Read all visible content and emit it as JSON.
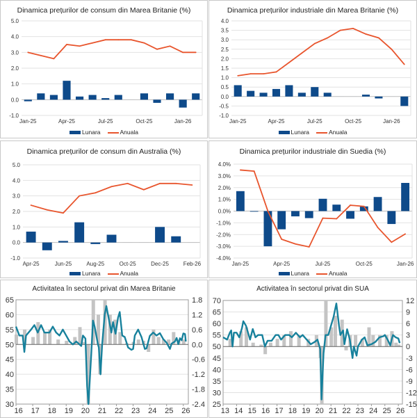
{
  "colors": {
    "bar": "#0e4a8a",
    "line": "#e8542c",
    "pmi_line": "#17819c",
    "pmi_bar": "#c4c4c4",
    "grid": "#e2e2e2"
  },
  "chart_data": [
    {
      "type": "bar+line",
      "title": "Dinamica prețurilor de consum din Marea Britanie (%)",
      "categories": [
        "Jan-25",
        "Feb-25",
        "Mar-25",
        "Apr-25",
        "May-25",
        "Jun-25",
        "Jul-25",
        "Aug-25",
        "Sep-25",
        "Oct-25",
        "Nov-25",
        "Dec-25",
        "Jan-26",
        "Feb-26"
      ],
      "tick_labels": [
        "Jan-25",
        "",
        "",
        "Apr-25",
        "",
        "",
        "Jul-25",
        "",
        "",
        "Oct-25",
        "",
        "",
        "Jan-26",
        ""
      ],
      "ylim": [
        -1,
        5
      ],
      "ystep": 1,
      "yformat": "0.0",
      "grid": true,
      "legend": "bottom",
      "series": [
        {
          "name": "Lunara",
          "type": "bar",
          "values": [
            -0.1,
            0.4,
            0.3,
            1.2,
            0.2,
            0.3,
            0.1,
            0.3,
            0.0,
            0.4,
            -0.2,
            0.4,
            -0.5,
            0.4
          ]
        },
        {
          "name": "Anuala",
          "type": "line",
          "values": [
            3.0,
            2.8,
            2.6,
            3.5,
            3.4,
            3.6,
            3.8,
            3.8,
            3.8,
            3.6,
            3.2,
            3.4,
            3.0,
            3.0
          ]
        }
      ]
    },
    {
      "type": "bar+line",
      "title": "Dinamica prețurilor industriale din Marea Britanie (%)",
      "categories": [
        "Jan-25",
        "Feb-25",
        "Mar-25",
        "Apr-25",
        "May-25",
        "Jun-25",
        "Jul-25",
        "Aug-25",
        "Sep-25",
        "Oct-25",
        "Nov-25",
        "Dec-25",
        "Jan-26",
        "Feb-26"
      ],
      "tick_labels": [
        "Jan-25",
        "",
        "",
        "Apr-25",
        "",
        "",
        "Jul-25",
        "",
        "",
        "Oct-25",
        "",
        "",
        "Jan-26",
        ""
      ],
      "ylim": [
        -1,
        4
      ],
      "ystep": 0.5,
      "yformat": "0.0",
      "grid": true,
      "legend": "bottom",
      "series": [
        {
          "name": "Lunara",
          "type": "bar",
          "values": [
            0.6,
            0.3,
            0.2,
            0.4,
            0.6,
            0.2,
            0.5,
            0.2,
            0.0,
            0.0,
            0.1,
            -0.1,
            0.0,
            -0.5
          ]
        },
        {
          "name": "Anuala",
          "type": "line",
          "values": [
            1.1,
            1.2,
            1.2,
            1.3,
            1.8,
            2.3,
            2.8,
            3.1,
            3.5,
            3.6,
            3.3,
            3.1,
            2.5,
            1.7
          ]
        }
      ]
    },
    {
      "type": "bar+line",
      "title": "Dinamica prețurilor de consum din Australia (%)",
      "categories": [
        "Apr-25",
        "May-25",
        "Jun-25",
        "Jul-25",
        "Aug-25",
        "Sep-25",
        "Oct-25",
        "Nov-25",
        "Dec-25",
        "Jan-26",
        "Feb-26"
      ],
      "tick_labels": [
        "Apr-25",
        "",
        "Jun-25",
        "",
        "Aug-25",
        "",
        "Oct-25",
        "",
        "Dec-25",
        "",
        "Feb-26"
      ],
      "ylim": [
        -1,
        5
      ],
      "ystep": 1,
      "yformat": "0.0",
      "grid": true,
      "legend": "bottom",
      "series": [
        {
          "name": "Lunara",
          "type": "bar",
          "values": [
            0.7,
            -0.5,
            0.1,
            1.3,
            -0.1,
            0.5,
            0.0,
            0.0,
            1.0,
            0.4,
            0.0
          ]
        },
        {
          "name": "Anuala",
          "type": "line",
          "values": [
            2.4,
            2.1,
            1.9,
            3.0,
            3.2,
            3.6,
            3.8,
            3.4,
            3.8,
            3.8,
            3.7
          ]
        }
      ]
    },
    {
      "type": "bar+line",
      "title": "Dinamica prețurilor industriale din Suedia (%)",
      "categories": [
        "Jan-25",
        "Feb-25",
        "Mar-25",
        "Apr-25",
        "May-25",
        "Jun-25",
        "Jul-25",
        "Aug-25",
        "Sep-25",
        "Oct-25",
        "Nov-25",
        "Dec-25",
        "Jan-26"
      ],
      "tick_labels": [
        "Jan-25",
        "",
        "",
        "Apr-25",
        "",
        "",
        "Jul-25",
        "",
        "",
        "Oct-25",
        "",
        "",
        "Jan-26"
      ],
      "ylim": [
        -4,
        4
      ],
      "ystep": 1,
      "yformat": "0.0%",
      "grid": true,
      "legend": "bottom",
      "series": [
        {
          "name": "Lunara",
          "type": "bar",
          "values": [
            1.7,
            -0.05,
            -3.0,
            -1.55,
            -0.45,
            -0.6,
            1.05,
            0.55,
            -0.65,
            0.4,
            1.2,
            -1.1,
            2.4
          ]
        },
        {
          "name": "Anuala",
          "type": "line",
          "values": [
            3.5,
            3.4,
            0.0,
            -2.4,
            -2.8,
            -3.05,
            -0.6,
            -0.65,
            0.5,
            0.4,
            -1.4,
            -2.65,
            -1.95
          ]
        }
      ]
    },
    {
      "type": "line+bar",
      "title": "Activitatea în sectorul privat din Marea Britanie",
      "xlim": [
        16,
        26.3
      ],
      "x_ticks": [
        "16",
        "17",
        "18",
        "19",
        "20",
        "21",
        "22",
        "23",
        "24",
        "25",
        "26"
      ],
      "ylim": [
        30,
        65
      ],
      "ystep": 5,
      "y2lim": [
        -2.4,
        1.8
      ],
      "y2step": 0.6,
      "y2format": "0.0",
      "grid": true,
      "line": {
        "x": [
          16.0,
          16.2,
          16.4,
          16.5,
          16.6,
          16.9,
          17.1,
          17.3,
          17.5,
          17.7,
          18.0,
          18.2,
          18.4,
          18.6,
          18.8,
          19.0,
          19.2,
          19.4,
          19.6,
          19.8,
          19.9,
          20.0,
          20.15,
          20.25,
          20.33,
          20.5,
          20.6,
          20.7,
          20.9,
          20.95,
          21.05,
          21.15,
          21.3,
          21.4,
          21.6,
          21.7,
          21.8,
          21.95,
          22.1,
          22.2,
          22.35,
          22.5,
          22.7,
          22.9,
          23.0,
          23.1,
          23.3,
          23.5,
          23.7,
          23.8,
          24.0,
          24.2,
          24.4,
          24.6,
          24.8,
          25.0,
          25.2,
          25.3,
          25.5,
          25.6,
          25.7,
          25.8,
          25.9,
          26.0,
          26.1,
          26.15
        ],
        "y": [
          56,
          53,
          53,
          47.5,
          53,
          55,
          56.5,
          54,
          56.5,
          54,
          54,
          56,
          54,
          53,
          55,
          53,
          51,
          50,
          51,
          50,
          49.5,
          53,
          52,
          36,
          13.8,
          47,
          58,
          56,
          50,
          49,
          40,
          50,
          60,
          62.9,
          57,
          54,
          57.5,
          53.6,
          59,
          60.9,
          53,
          52.5,
          49,
          48.2,
          48.5,
          53,
          55,
          52.5,
          48.5,
          48.7,
          52.9,
          54,
          53,
          53.8,
          51.8,
          50.6,
          48.5,
          50.3,
          51,
          52.2,
          50.1,
          52.1,
          51.4,
          53.7,
          53.5,
          51
        ]
      },
      "bars": {
        "x": [
          16.0,
          16.5,
          17.0,
          17.3,
          17.7,
          18.0,
          18.5,
          19.0,
          19.5,
          19.8,
          20.0,
          20.3,
          20.6,
          20.9,
          21.0,
          21.3,
          21.6,
          21.9,
          22.2,
          22.6,
          23.0,
          23.3,
          23.6,
          23.9,
          24.2,
          24.5,
          24.8,
          25.1,
          25.4,
          25.7,
          26.0
        ],
        "y": [
          0.4,
          0.6,
          0.3,
          0.9,
          0.5,
          0.6,
          0.2,
          0.15,
          0.3,
          0.7,
          0.1,
          -2.4,
          1.8,
          1.2,
          -1.2,
          1.8,
          1.2,
          1.0,
          0.5,
          0.05,
          0.1,
          0.2,
          0.15,
          -0.3,
          0.6,
          0.3,
          0.2,
          0.2,
          0.5,
          0.2,
          0.2
        ]
      }
    },
    {
      "type": "line+bar",
      "title": "Activitatea în sectorul privat din SUA",
      "xlim": [
        13,
        26.3
      ],
      "x_ticks": [
        "13",
        "14",
        "15",
        "16",
        "17",
        "18",
        "19",
        "20",
        "21",
        "22",
        "23",
        "24",
        "25",
        "26"
      ],
      "ylim": [
        25,
        70
      ],
      "ystep": 5,
      "y2lim": [
        -15,
        12
      ],
      "y2step": 3,
      "y2format": "0",
      "grid": true,
      "line": {
        "x": [
          13.0,
          13.3,
          13.5,
          13.6,
          13.7,
          13.8,
          14.0,
          14.2,
          14.4,
          14.5,
          14.7,
          14.9,
          15.0,
          15.2,
          15.4,
          15.6,
          15.9,
          16.1,
          16.3,
          16.6,
          16.9,
          17.1,
          17.3,
          17.6,
          17.9,
          18.1,
          18.4,
          18.7,
          18.9,
          19.2,
          19.5,
          19.8,
          20.0,
          20.2,
          20.3,
          20.45,
          20.6,
          20.8,
          21.0,
          21.2,
          21.4,
          21.6,
          21.7,
          21.9,
          22.0,
          22.2,
          22.4,
          22.6,
          22.7,
          22.9,
          23.0,
          23.3,
          23.5,
          23.7,
          24.0,
          24.3,
          24.6,
          24.9,
          25.0,
          25.2,
          25.4,
          25.5,
          25.6,
          25.8,
          26.0,
          26.1
        ],
        "y": [
          54,
          53,
          56,
          57,
          50,
          56,
          56,
          54,
          58,
          61,
          59,
          55,
          53,
          57.6,
          54,
          55,
          55,
          50,
          52.5,
          52.5,
          55,
          55,
          53,
          55,
          55,
          54,
          56,
          54,
          55,
          53,
          51,
          52,
          53,
          49,
          27,
          47,
          55,
          55,
          59,
          63,
          68.7,
          59,
          55,
          57,
          51,
          57.5,
          53,
          45,
          50,
          46,
          50,
          53,
          54,
          50.5,
          51,
          52,
          54,
          54.5,
          55,
          53,
          50.5,
          53,
          55,
          54,
          53.5,
          51.5
        ]
      },
      "bars": {
        "x": [
          13.5,
          14.3,
          14.7,
          15.2,
          15.8,
          16.1,
          16.5,
          17.0,
          17.5,
          18.0,
          18.6,
          19.3,
          19.9,
          20.2,
          20.3,
          20.6,
          21.0,
          21.3,
          21.8,
          22.1,
          22.4,
          22.8,
          23.3,
          23.8,
          24.1,
          24.6,
          25.1,
          25.5,
          25.8,
          26.0
        ],
        "y": [
          2,
          4,
          5,
          1,
          0.5,
          -2,
          1,
          2,
          3,
          4,
          3,
          2,
          3,
          -3,
          -15,
          12,
          5,
          8,
          7,
          -1,
          3,
          3,
          2,
          5,
          3,
          3,
          3,
          4,
          1,
          0.5
        ]
      }
    }
  ]
}
